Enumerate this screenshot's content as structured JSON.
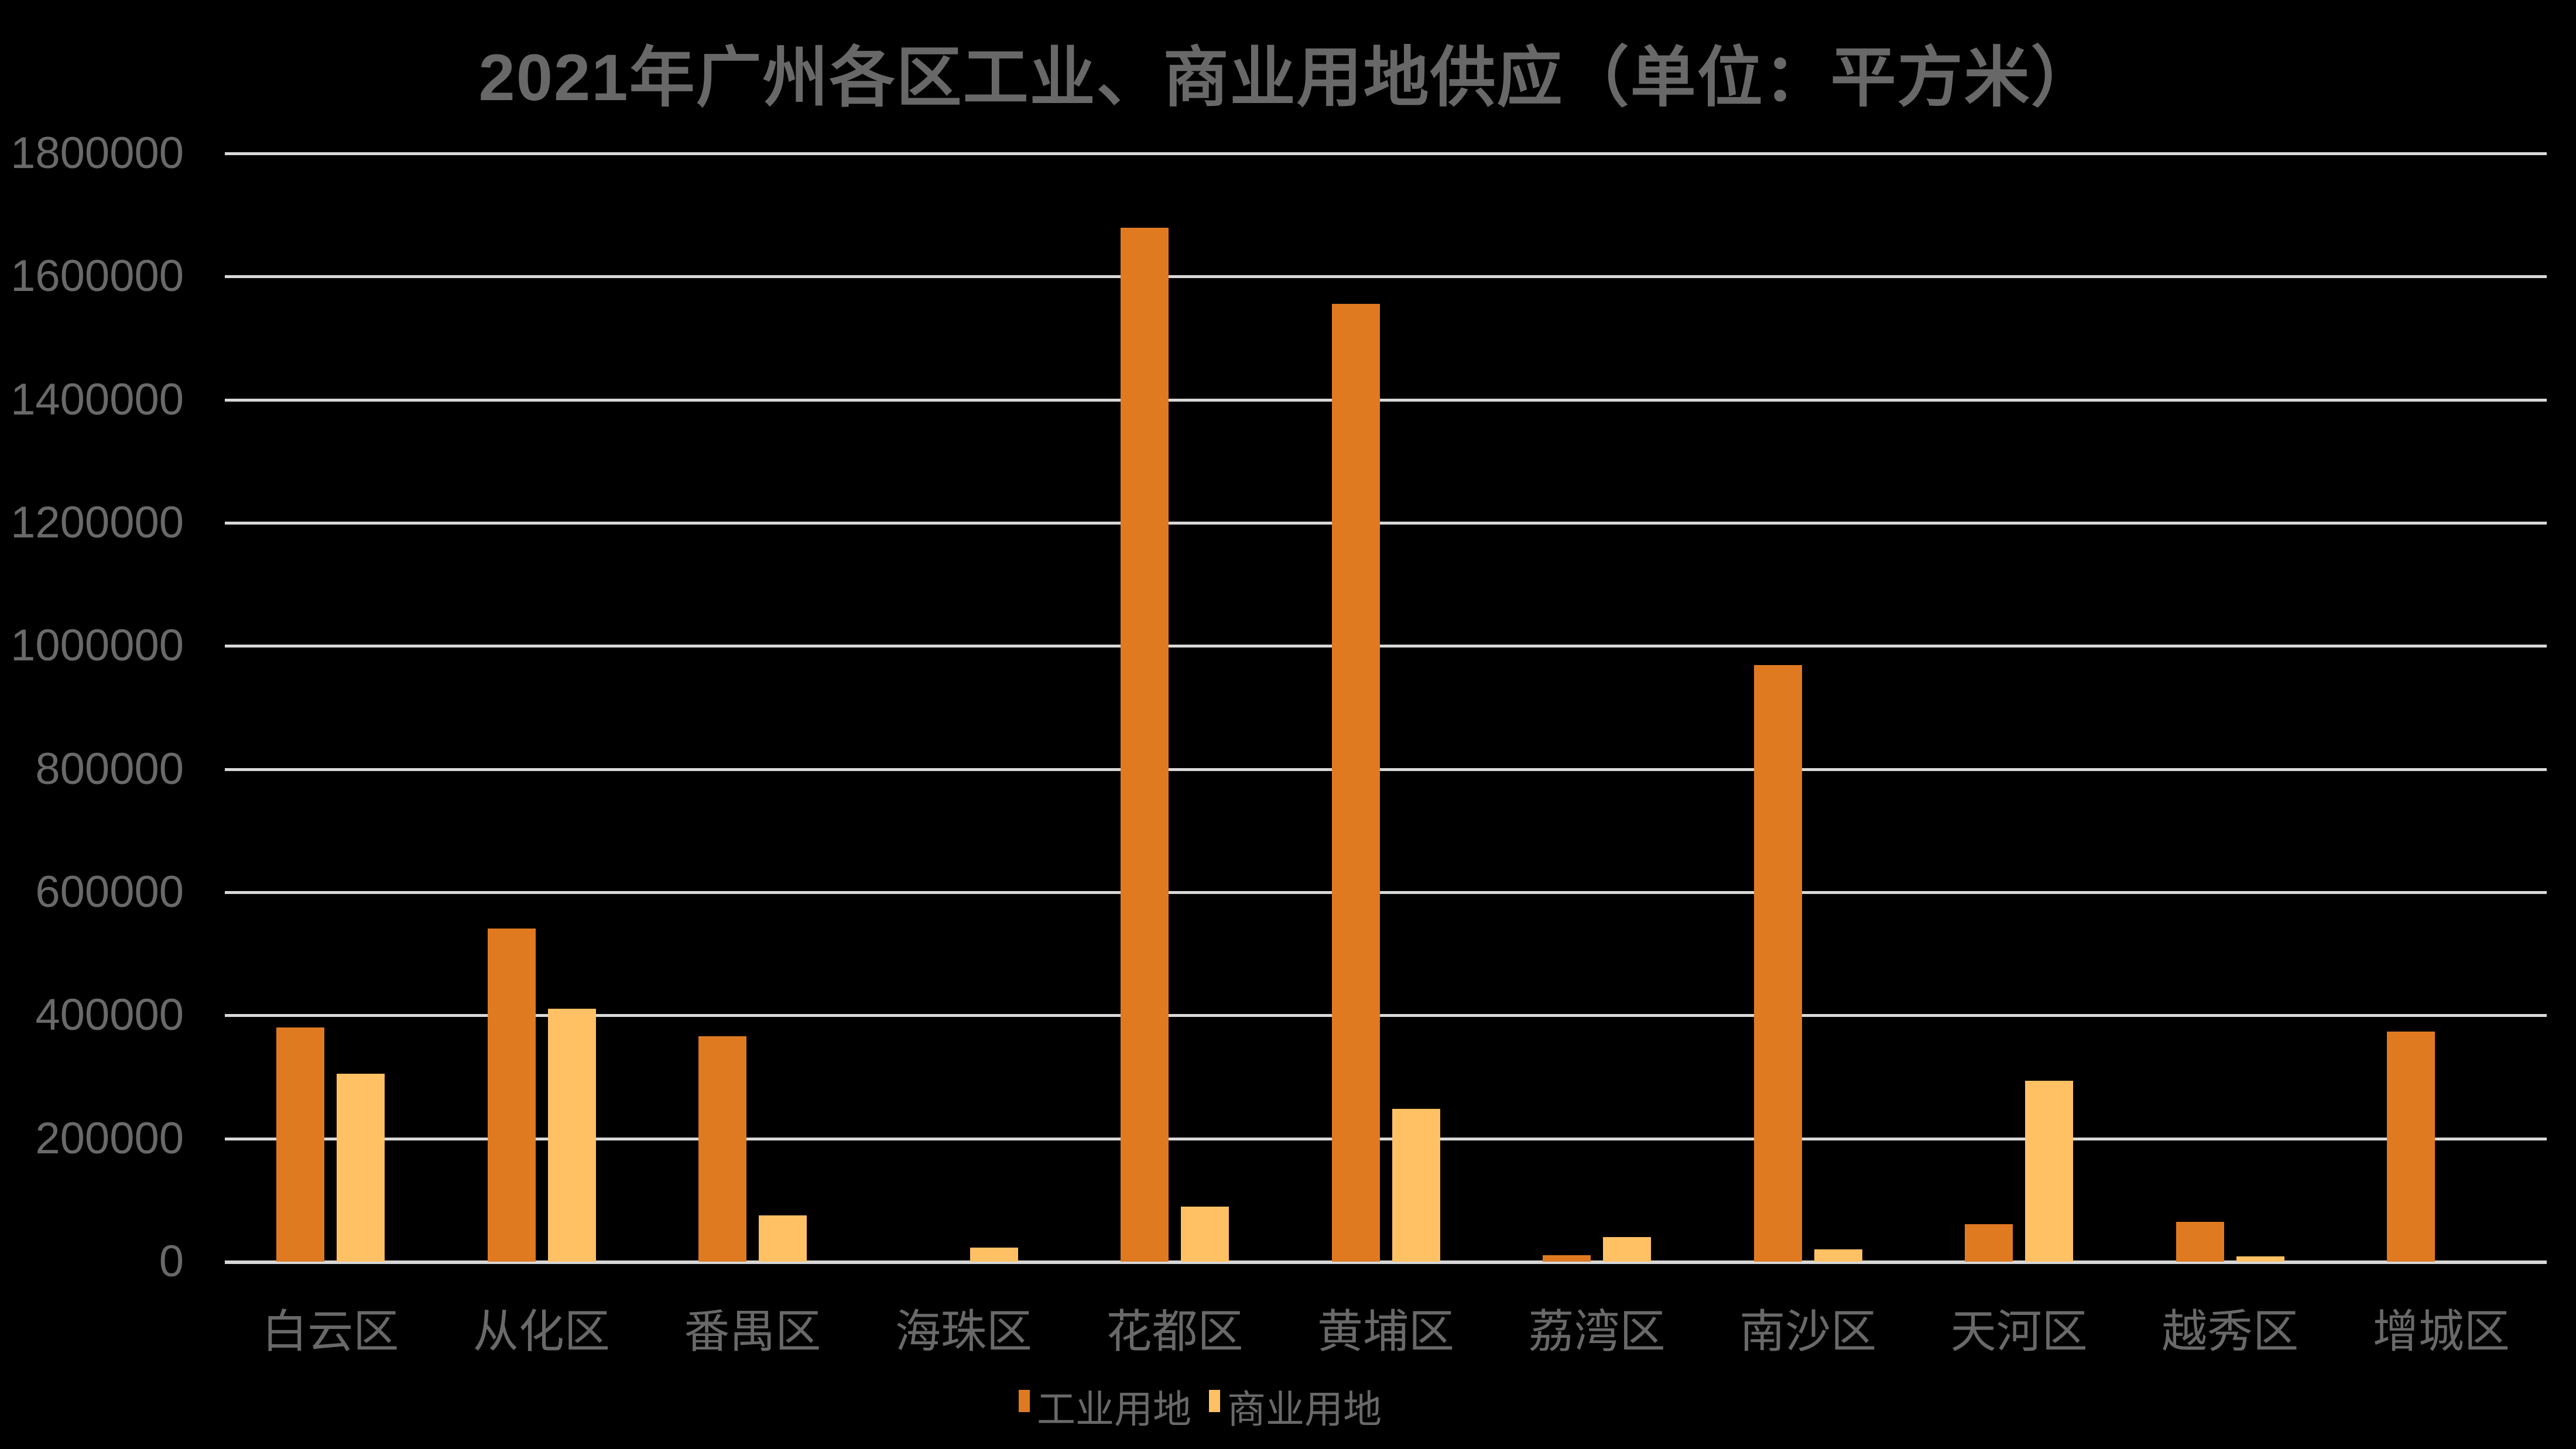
{
  "title": "2021年广州各区工业、商业用地供应（单位：平方米）",
  "colors": {
    "industrial": "#E07A21",
    "commercial": "#FFC163",
    "grid": "#D8D8D8",
    "text": "#696969",
    "background": "#000000"
  },
  "legend": {
    "items": [
      {
        "label": "工业用地",
        "color_key": "industrial"
      },
      {
        "label": "商业用地",
        "color_key": "commercial"
      }
    ]
  },
  "chart_data": {
    "type": "bar",
    "title": "2021年广州各区工业、商业用地供应（单位：平方米）",
    "categories": [
      "白云区",
      "从化区",
      "番禺区",
      "海珠区",
      "花都区",
      "黄埔区",
      "荔湾区",
      "南沙区",
      "天河区",
      "越秀区",
      "增城区"
    ],
    "series": [
      {
        "name": "工业用地",
        "color_key": "industrial",
        "values": [
          380000,
          541000,
          366000,
          0,
          1679000,
          1556000,
          10000,
          969000,
          61000,
          65000,
          374000
        ]
      },
      {
        "name": "商业用地",
        "color_key": "commercial",
        "values": [
          305000,
          411000,
          75000,
          23000,
          89000,
          248000,
          40000,
          20000,
          294000,
          9000,
          0
        ]
      }
    ],
    "xlabel": "",
    "ylabel": "",
    "ylim": [
      0,
      1800000
    ],
    "ytick_step": 200000,
    "yticks": [
      0,
      200000,
      400000,
      600000,
      800000,
      1000000,
      1200000,
      1400000,
      1600000,
      1800000
    ],
    "grid": true,
    "legend_position": "bottom"
  }
}
